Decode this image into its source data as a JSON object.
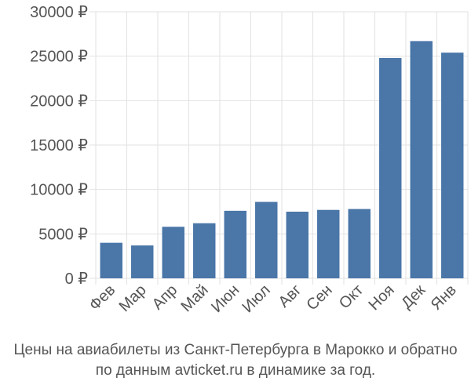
{
  "chart_data": {
    "type": "bar",
    "categories": [
      "Фев",
      "Мар",
      "Апр",
      "Май",
      "Июн",
      "Июл",
      "Авг",
      "Сен",
      "Окт",
      "Ноя",
      "Дек",
      "Янв"
    ],
    "values": [
      4000,
      3700,
      5800,
      6200,
      7600,
      8600,
      7500,
      7700,
      7800,
      24800,
      26700,
      25400
    ],
    "ylim": [
      0,
      30000
    ],
    "yticks": [
      0,
      5000,
      10000,
      15000,
      20000,
      25000,
      30000
    ],
    "ytick_labels": [
      "0 ₽",
      "5000 ₽",
      "10000 ₽",
      "15000 ₽",
      "20000 ₽",
      "25000 ₽",
      "30000 ₽"
    ],
    "grid": true,
    "bar_color": "#4a76a8",
    "grid_color": "#e2e2e2"
  },
  "caption": {
    "line1": "Цены на авиабилеты из Санкт-Петербурга в Марокко и обратно",
    "line2": "по данным avticket.ru в динамике за год."
  }
}
